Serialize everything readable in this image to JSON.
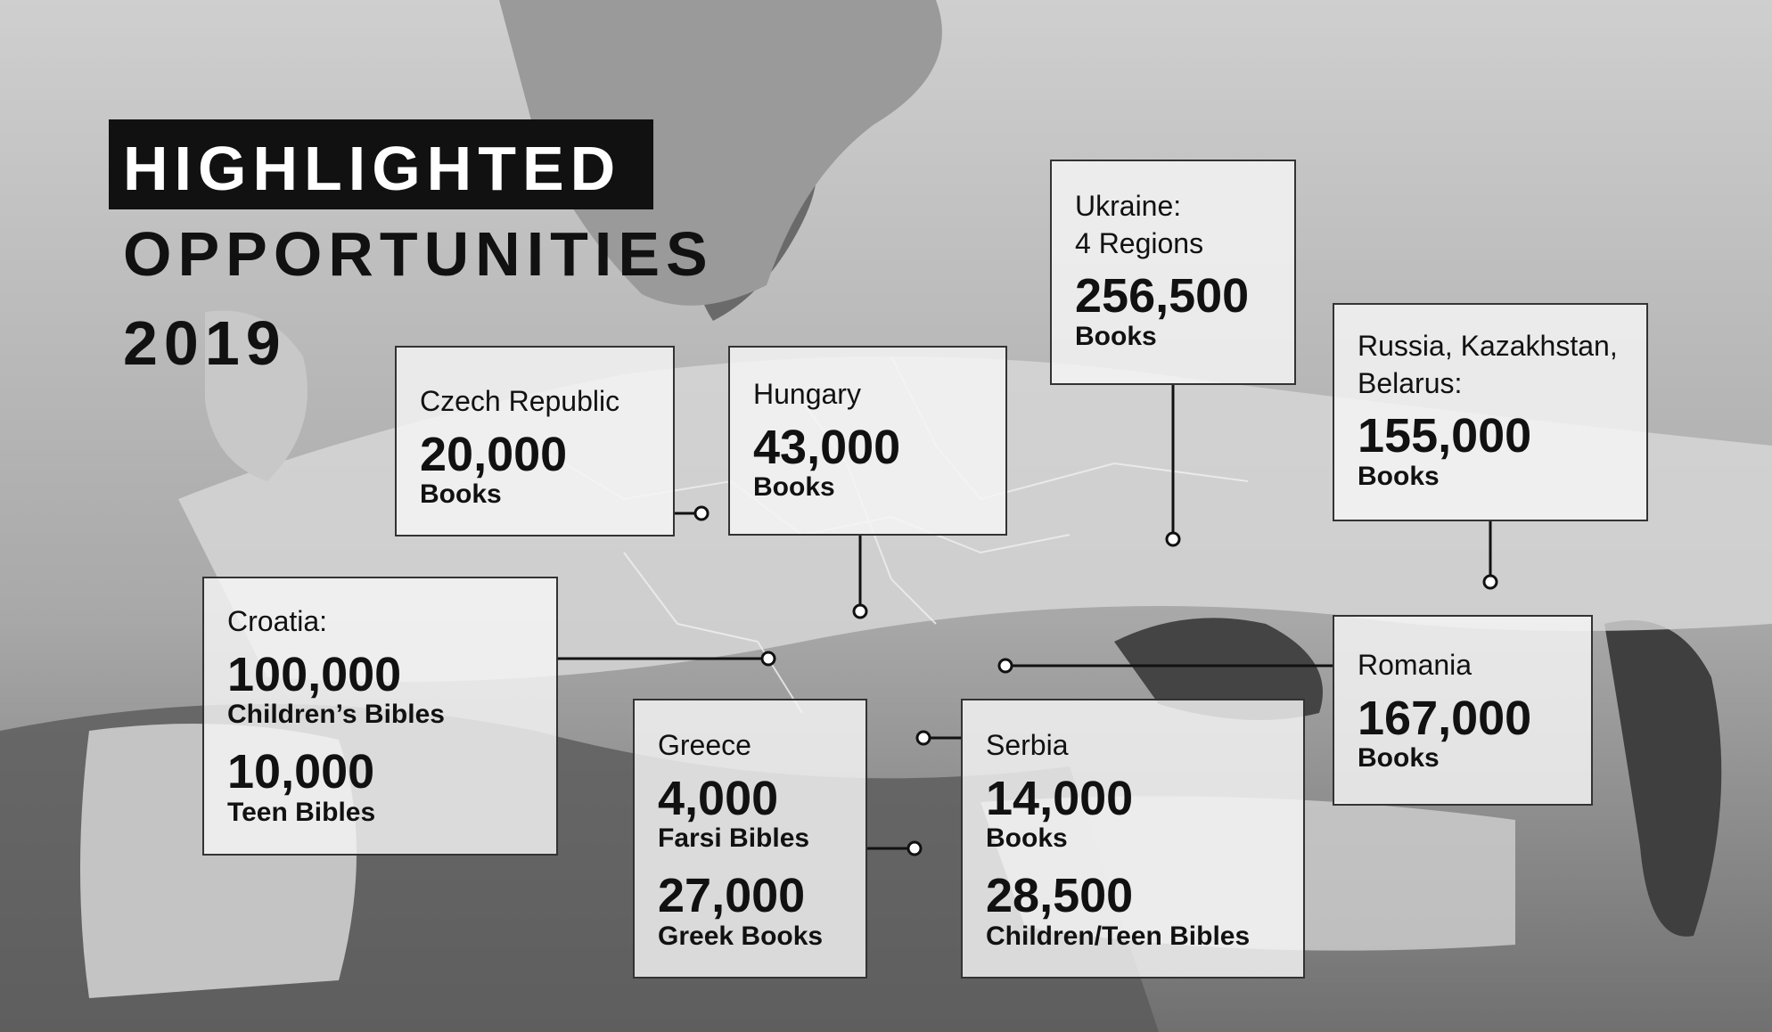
{
  "title": {
    "line1": "HIGHLIGHTED",
    "line2": "OPPORTUNITIES",
    "line3": "2019"
  },
  "colors": {
    "title_bg": "#111111",
    "box_bg": "#f5f5f5",
    "map_tones": [
      "#e6e6e6",
      "#bdbdbd",
      "#7a7a7a",
      "#4a4a4a"
    ]
  },
  "callouts": {
    "czech": {
      "label": "Czech Republic",
      "value": "20,000",
      "unit": "Books"
    },
    "hungary": {
      "label": "Hungary",
      "value": "43,000",
      "unit": "Books"
    },
    "ukraine": {
      "label": "Ukraine:",
      "label2": "4 Regions",
      "value": "256,500",
      "unit": "Books"
    },
    "russia": {
      "label": "Russia, Kazakhstan,",
      "label2": "Belarus:",
      "value": "155,000",
      "unit": "Books"
    },
    "croatia": {
      "label": "Croatia:",
      "value": "100,000",
      "unit": "Children’s Bibles",
      "value2": "10,000",
      "unit2": "Teen Bibles"
    },
    "romania": {
      "label": "Romania",
      "value": "167,000",
      "unit": "Books"
    },
    "greece": {
      "label": "Greece",
      "value": "4,000",
      "unit": "Farsi Bibles",
      "value2": "27,000",
      "unit2": "Greek Books"
    },
    "serbia": {
      "label": "Serbia",
      "value": "14,000",
      "unit": "Books",
      "value2": "28,500",
      "unit2": "Children/Teen Bibles"
    }
  }
}
